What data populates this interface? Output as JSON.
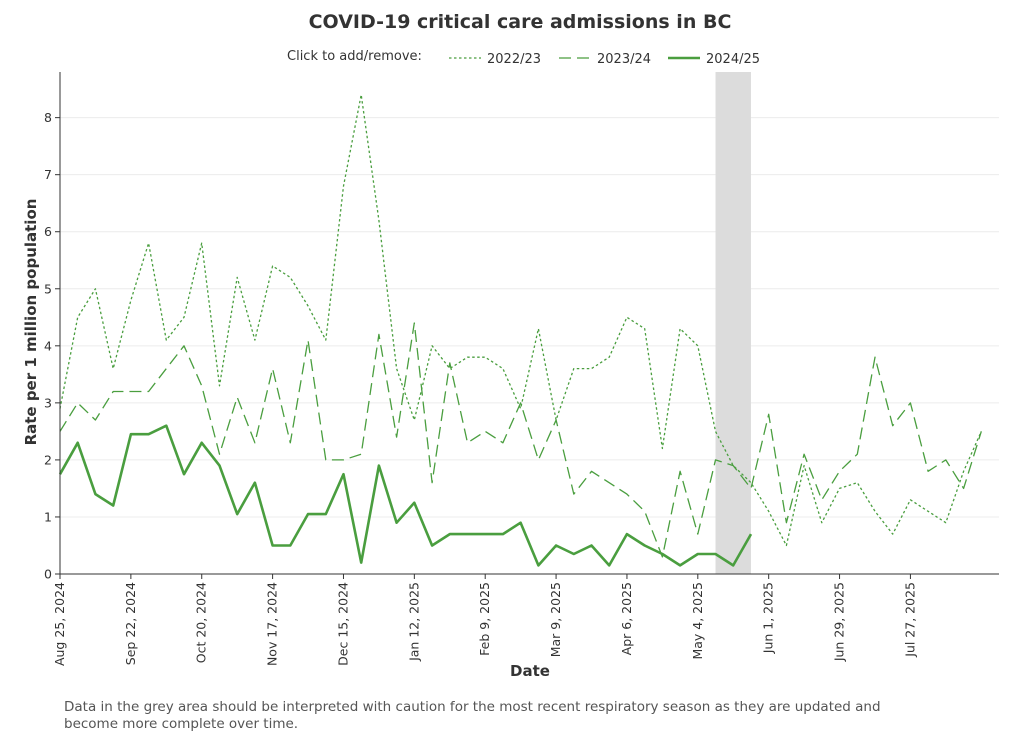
{
  "colors": {
    "series": "#4a9e3f",
    "grey_band": "#dcdcdc",
    "grid": "#ececec",
    "axis": "#333333"
  },
  "footnote": "Data in the grey area should be interpreted with caution for the most recent respiratory season as they are updated and become more complete over time.",
  "chart_data": {
    "type": "line",
    "title": "COVID-19 critical care admissions in BC",
    "legend_prefix": "Click to add/remove:",
    "legend_position": "top",
    "xlabel": "Date",
    "ylabel": "Rate per 1 million population",
    "ylim": [
      0,
      8.8
    ],
    "yticks": [
      0,
      1,
      2,
      3,
      4,
      5,
      6,
      7,
      8
    ],
    "grid": true,
    "x_start": "2024-08-25",
    "x_end": "2025-08-31",
    "xtick_labels": [
      "Aug 25, 2024",
      "Sep 22, 2024",
      "Oct 20, 2024",
      "Nov 17, 2024",
      "Dec 15, 2024",
      "Jan 12, 2025",
      "Feb 9, 2025",
      "Mar 9, 2025",
      "Apr 6, 2025",
      "May 4, 2025",
      "Jun 1, 2025",
      "Jun 29, 2025",
      "Jul 27, 2025"
    ],
    "xtick_dates": [
      "2024-08-25",
      "2024-09-22",
      "2024-10-20",
      "2024-11-17",
      "2024-12-15",
      "2025-01-12",
      "2025-02-09",
      "2025-03-09",
      "2025-04-06",
      "2025-05-04",
      "2025-06-01",
      "2025-06-29",
      "2025-07-27"
    ],
    "shaded_region": {
      "start": "2025-05-11",
      "end": "2025-05-25"
    },
    "series": [
      {
        "name": "2022/23",
        "style": "dotted",
        "x": [
          "2024-08-25",
          "2024-09-01",
          "2024-09-08",
          "2024-09-15",
          "2024-09-22",
          "2024-09-29",
          "2024-10-06",
          "2024-10-13",
          "2024-10-20",
          "2024-10-27",
          "2024-11-03",
          "2024-11-10",
          "2024-11-17",
          "2024-11-24",
          "2024-12-01",
          "2024-12-08",
          "2024-12-15",
          "2024-12-22",
          "2024-12-29",
          "2025-01-05",
          "2025-01-12",
          "2025-01-19",
          "2025-01-26",
          "2025-02-02",
          "2025-02-09",
          "2025-02-16",
          "2025-02-23",
          "2025-03-02",
          "2025-03-09",
          "2025-03-16",
          "2025-03-23",
          "2025-03-30",
          "2025-04-06",
          "2025-04-13",
          "2025-04-20",
          "2025-04-27",
          "2025-05-04",
          "2025-05-11",
          "2025-05-18",
          "2025-05-25",
          "2025-06-01",
          "2025-06-08",
          "2025-06-15",
          "2025-06-22",
          "2025-06-29",
          "2025-07-06",
          "2025-07-13",
          "2025-07-20",
          "2025-07-27",
          "2025-08-03",
          "2025-08-10",
          "2025-08-17",
          "2025-08-24"
        ],
        "y": [
          2.9,
          4.5,
          5.0,
          3.6,
          4.8,
          5.8,
          4.1,
          4.5,
          5.8,
          3.3,
          5.2,
          4.1,
          5.4,
          5.2,
          4.7,
          4.1,
          6.8,
          8.4,
          6.2,
          3.6,
          2.7,
          4.0,
          3.6,
          3.8,
          3.8,
          3.6,
          2.9,
          4.3,
          2.7,
          3.6,
          3.6,
          3.8,
          4.5,
          4.3,
          2.2,
          4.3,
          4.0,
          2.5,
          1.9,
          1.6,
          1.1,
          0.5,
          1.9,
          0.9,
          1.5,
          1.6,
          1.1,
          0.7,
          1.3,
          1.1,
          0.9,
          1.8,
          2.5
        ]
      },
      {
        "name": "2023/24",
        "style": "dashed",
        "x": [
          "2024-08-25",
          "2024-09-01",
          "2024-09-08",
          "2024-09-15",
          "2024-09-22",
          "2024-09-29",
          "2024-10-06",
          "2024-10-13",
          "2024-10-20",
          "2024-10-27",
          "2024-11-03",
          "2024-11-10",
          "2024-11-17",
          "2024-11-24",
          "2024-12-01",
          "2024-12-08",
          "2024-12-15",
          "2024-12-22",
          "2024-12-29",
          "2025-01-05",
          "2025-01-12",
          "2025-01-19",
          "2025-01-26",
          "2025-02-02",
          "2025-02-09",
          "2025-02-16",
          "2025-02-23",
          "2025-03-02",
          "2025-03-09",
          "2025-03-16",
          "2025-03-23",
          "2025-03-30",
          "2025-04-06",
          "2025-04-13",
          "2025-04-20",
          "2025-04-27",
          "2025-05-04",
          "2025-05-11",
          "2025-05-18",
          "2025-05-25",
          "2025-06-01",
          "2025-06-08",
          "2025-06-15",
          "2025-06-22",
          "2025-06-29",
          "2025-07-06",
          "2025-07-13",
          "2025-07-20",
          "2025-07-27",
          "2025-08-03",
          "2025-08-10",
          "2025-08-17",
          "2025-08-24"
        ],
        "y": [
          2.5,
          3.0,
          2.7,
          3.2,
          3.2,
          3.2,
          3.6,
          4.0,
          3.3,
          2.1,
          3.1,
          2.3,
          3.6,
          2.3,
          4.1,
          2.0,
          2.0,
          2.1,
          4.2,
          2.4,
          4.4,
          1.6,
          3.7,
          2.3,
          2.5,
          2.3,
          3.0,
          2.0,
          2.7,
          1.4,
          1.8,
          1.6,
          1.4,
          1.1,
          0.3,
          1.8,
          0.7,
          2.0,
          1.9,
          1.5,
          2.8,
          0.9,
          2.1,
          1.3,
          1.8,
          2.1,
          3.8,
          2.6,
          3.0,
          1.8,
          2.0,
          1.5,
          2.5
        ]
      },
      {
        "name": "2024/25",
        "style": "solid",
        "x": [
          "2024-08-25",
          "2024-09-01",
          "2024-09-08",
          "2024-09-15",
          "2024-09-22",
          "2024-09-29",
          "2024-10-06",
          "2024-10-13",
          "2024-10-20",
          "2024-10-27",
          "2024-11-03",
          "2024-11-10",
          "2024-11-17",
          "2024-11-24",
          "2024-12-01",
          "2024-12-08",
          "2024-12-15",
          "2024-12-22",
          "2024-12-29",
          "2025-01-05",
          "2025-01-12",
          "2025-01-19",
          "2025-01-26",
          "2025-02-02",
          "2025-02-09",
          "2025-02-16",
          "2025-02-23",
          "2025-03-02",
          "2025-03-09",
          "2025-03-16",
          "2025-03-23",
          "2025-03-30",
          "2025-04-06",
          "2025-04-13",
          "2025-04-20",
          "2025-04-27",
          "2025-05-04",
          "2025-05-11",
          "2025-05-18",
          "2025-05-25"
        ],
        "y": [
          1.75,
          2.3,
          1.4,
          1.2,
          2.45,
          2.45,
          2.6,
          1.75,
          2.3,
          1.9,
          1.05,
          1.6,
          0.5,
          0.5,
          1.05,
          1.05,
          1.75,
          0.2,
          1.9,
          0.9,
          1.25,
          0.5,
          0.7,
          0.7,
          0.7,
          0.7,
          0.9,
          0.15,
          0.5,
          0.35,
          0.5,
          0.15,
          0.7,
          0.5,
          0.35,
          0.15,
          0.35,
          0.35,
          0.15,
          0.7
        ]
      }
    ]
  }
}
